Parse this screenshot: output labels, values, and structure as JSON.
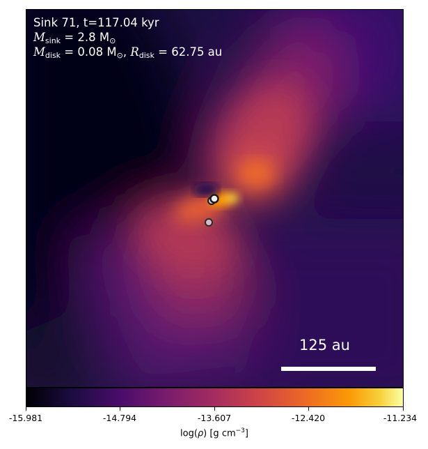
{
  "annotation": {
    "line1": "Sink 71, t=117.04 kyr",
    "msink_symbol": "M",
    "msink_sub": "sink",
    "msink_value": " = 2.8 M",
    "msink_sun": "⊙",
    "mdisk_symbol": "M",
    "mdisk_sub": "disk",
    "mdisk_value": " = 0.08 M",
    "mdisk_sun": "⊙",
    "rdisk_sep": ", ",
    "rdisk_symbol": "R",
    "rdisk_sub": "disk",
    "rdisk_value": " = 62.75 au"
  },
  "scale_bar": {
    "label": "125 au"
  },
  "colorbar": {
    "ticks": [
      "-15.981",
      "-14.794",
      "-13.607",
      "-12.420",
      "-11.234"
    ],
    "label_prefix": "log(",
    "label_rho": "ρ",
    "label_mid": ") [g cm",
    "label_exp": "−3",
    "label_suffix": "]"
  },
  "colors": {
    "low": "#000004",
    "mid": "#a52c60",
    "high": "#fcffa4"
  }
}
